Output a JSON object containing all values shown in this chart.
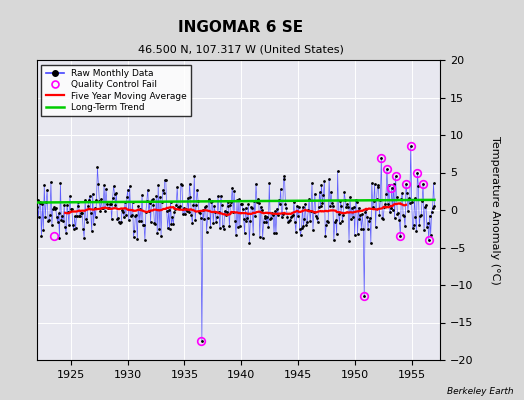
{
  "title": "INGOMAR 6 SE",
  "subtitle": "46.500 N, 107.317 W (United States)",
  "ylabel": "Temperature Anomaly (°C)",
  "attribution": "Berkeley Earth",
  "xlim": [
    1922.0,
    1957.5
  ],
  "ylim": [
    -20,
    20
  ],
  "yticks": [
    -20,
    -15,
    -10,
    -5,
    0,
    5,
    10,
    15,
    20
  ],
  "xticks": [
    1925,
    1930,
    1935,
    1940,
    1945,
    1950,
    1955
  ],
  "bg_color": "#d8d8d8",
  "plot_bg_color": "#e8e8f0",
  "raw_color": "#4444ff",
  "ma_color": "#ff0000",
  "trend_color": "#00cc00",
  "qc_color": "#ff00ff",
  "seed": 77,
  "year_start": 1922.0,
  "year_end": 1957.0,
  "n_months": 420,
  "qc_fail_points": [
    [
      1923.5,
      -3.5
    ],
    [
      1936.5,
      -17.5
    ],
    [
      1950.8,
      -11.5
    ],
    [
      1952.3,
      7.0
    ],
    [
      1952.8,
      5.5
    ],
    [
      1953.2,
      3.0
    ],
    [
      1953.6,
      4.5
    ],
    [
      1954.0,
      -3.5
    ],
    [
      1954.5,
      3.5
    ],
    [
      1954.9,
      8.5
    ],
    [
      1955.5,
      5.0
    ],
    [
      1956.0,
      3.5
    ],
    [
      1956.5,
      -4.0
    ]
  ],
  "spike_neg_year": 1936.5,
  "spike_neg_val": -17.5,
  "spike_neg2_year": 1950.8,
  "spike_neg2_val": -11.5
}
